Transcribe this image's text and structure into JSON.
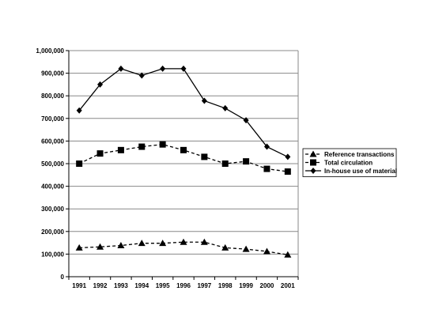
{
  "chart_data": {
    "type": "line",
    "categories": [
      "1991",
      "1992",
      "1993",
      "1994",
      "1995",
      "1996",
      "1997",
      "1998",
      "1999",
      "2000",
      "2001"
    ],
    "ylim": [
      0,
      1000000
    ],
    "yticks": [
      "0",
      "100,000",
      "200,000",
      "300,000",
      "400,000",
      "500,000",
      "600,000",
      "700,000",
      "800,000",
      "900,000",
      "1,000,000"
    ],
    "ytick_values": [
      0,
      100000,
      200000,
      300000,
      400000,
      500000,
      600000,
      700000,
      800000,
      900000,
      1000000
    ],
    "grid": "horizontal",
    "legend_position": "right",
    "series": [
      {
        "name": "Reference transactions",
        "line_style": "dashed",
        "marker": "triangle",
        "values": [
          128000,
          132000,
          138000,
          148000,
          148000,
          153000,
          153000,
          128000,
          122000,
          112000,
          97000
        ]
      },
      {
        "name": "Total circulation",
        "line_style": "dashed",
        "marker": "square",
        "values": [
          500000,
          545000,
          560000,
          575000,
          585000,
          560000,
          530000,
          500000,
          510000,
          477000,
          465000
        ]
      },
      {
        "name": "In-house use of material",
        "line_style": "solid",
        "marker": "diamond",
        "values": [
          735000,
          850000,
          920000,
          890000,
          920000,
          920000,
          778000,
          745000,
          692000,
          575000,
          530000
        ]
      }
    ]
  }
}
